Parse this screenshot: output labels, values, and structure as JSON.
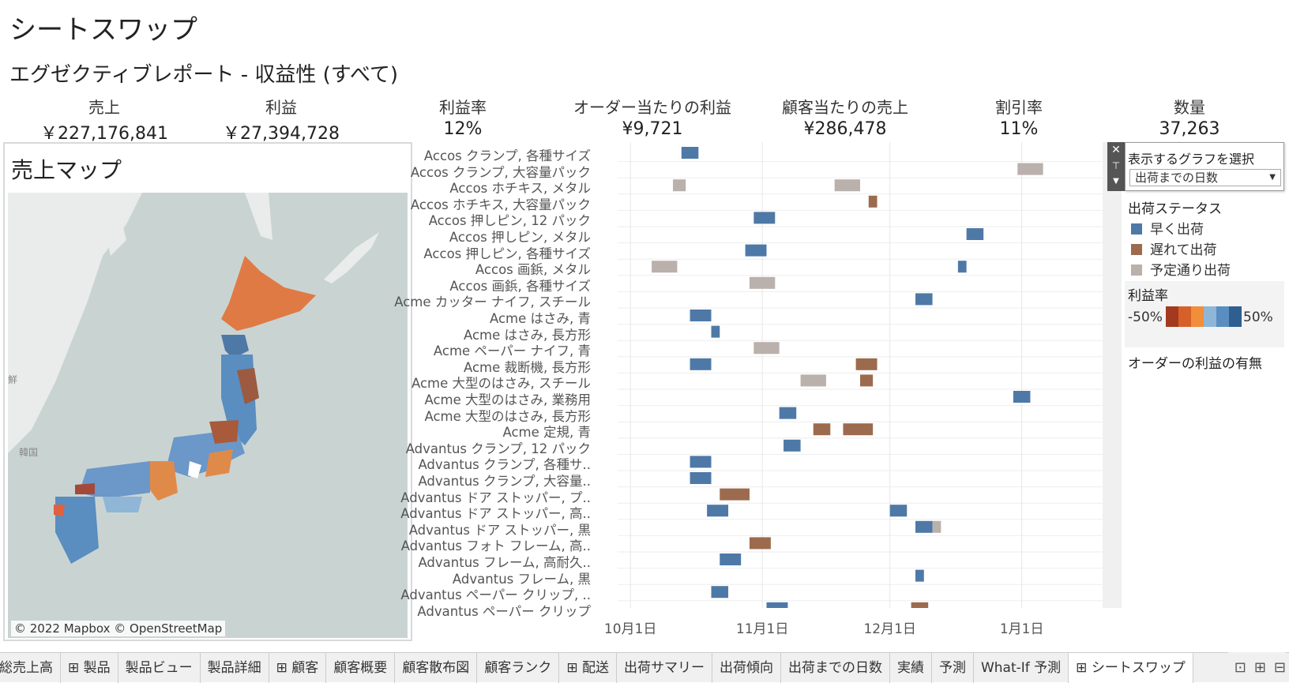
{
  "page": {
    "title": "シートスワップ",
    "subtitle": "エグゼクティブレポート - 収益性 (すべて)"
  },
  "kpis": [
    {
      "label": "売上",
      "value": "￥227,176,841"
    },
    {
      "label": "利益",
      "value": "￥27,394,728"
    },
    {
      "label": "利益率",
      "value": "12%"
    },
    {
      "label": "オーダー当たりの利益",
      "value": "¥9,721"
    },
    {
      "label": "顧客当たりの売上",
      "value": "¥286,478"
    },
    {
      "label": "割引率",
      "value": "11%"
    },
    {
      "label": "数量",
      "value": "37,263"
    }
  ],
  "map": {
    "title": "売上マップ",
    "attribution": "© 2022 Mapbox © OpenStreetMap",
    "labels": [
      "韓国",
      "鮮"
    ]
  },
  "gantt": {
    "rows": [
      "Accos クランプ, 各種サイズ",
      "Accos クランプ, 大容量パック",
      "Accos ホチキス, メタル",
      "Accos ホチキス, 大容量パック",
      "Accos 押しピン, 12 パック",
      "Accos 押しピン, メタル",
      "Accos 押しピン, 各種サイズ",
      "Accos 画鋲, メタル",
      "Accos 画鋲, 各種サイズ",
      "Acme カッター ナイフ, スチール",
      "Acme はさみ, 青",
      "Acme はさみ, 長方形",
      "Acme ペーパー ナイフ, 青",
      "Acme 裁断機, 長方形",
      "Acme 大型のはさみ, スチール",
      "Acme 大型のはさみ, 業務用",
      "Acme 大型のはさみ, 長方形",
      "Acme 定規, 青",
      "Advantus クランプ, 12 パック",
      "Advantus クランプ, 各種サ..",
      "Advantus クランプ, 大容量..",
      "Advantus ドア ストッパー, プ..",
      "Advantus ドア ストッパー, 高..",
      "Advantus ドア ストッパー, 黒",
      "Advantus フォト フレーム, 高..",
      "Advantus フレーム, 高耐久..",
      "Advantus フレーム, 黒",
      "Advantus ペーパー クリップ, ..",
      "Advantus ペーパー クリップ"
    ],
    "x_ticks": [
      "10月1日",
      "11月1日",
      "12月1日",
      "1月1日"
    ]
  },
  "chart_data": {
    "type": "gantt",
    "x_domain": [
      "2021-09-28",
      "2022-01-20"
    ],
    "x_ticks": [
      "2021-10-01",
      "2021-11-01",
      "2021-12-01",
      "2022-01-01"
    ],
    "bars": [
      {
        "row": 0,
        "start": "2021-10-13",
        "end": "2021-10-17",
        "status": "early"
      },
      {
        "row": 1,
        "start": "2021-12-31",
        "end": "2022-01-06",
        "status": "ontime"
      },
      {
        "row": 2,
        "start": "2021-10-11",
        "end": "2021-10-14",
        "status": "ontime"
      },
      {
        "row": 2,
        "start": "2021-11-18",
        "end": "2021-11-24",
        "status": "ontime"
      },
      {
        "row": 3,
        "start": "2021-11-26",
        "end": "2021-11-28",
        "status": "late"
      },
      {
        "row": 4,
        "start": "2021-10-30",
        "end": "2021-11-04",
        "status": "early"
      },
      {
        "row": 5,
        "start": "2021-12-19",
        "end": "2021-12-23",
        "status": "early"
      },
      {
        "row": 6,
        "start": "2021-10-28",
        "end": "2021-11-02",
        "status": "early"
      },
      {
        "row": 7,
        "start": "2021-10-06",
        "end": "2021-10-12",
        "status": "ontime"
      },
      {
        "row": 7,
        "start": "2021-12-17",
        "end": "2021-12-19",
        "status": "early"
      },
      {
        "row": 8,
        "start": "2021-10-29",
        "end": "2021-11-04",
        "status": "ontime"
      },
      {
        "row": 9,
        "start": "2021-12-07",
        "end": "2021-12-11",
        "status": "early"
      },
      {
        "row": 10,
        "start": "2021-10-15",
        "end": "2021-10-20",
        "status": "early"
      },
      {
        "row": 11,
        "start": "2021-10-20",
        "end": "2021-10-22",
        "status": "early"
      },
      {
        "row": 12,
        "start": "2021-10-30",
        "end": "2021-11-05",
        "status": "ontime"
      },
      {
        "row": 13,
        "start": "2021-10-15",
        "end": "2021-10-20",
        "status": "early"
      },
      {
        "row": 13,
        "start": "2021-11-23",
        "end": "2021-11-28",
        "status": "late"
      },
      {
        "row": 14,
        "start": "2021-11-10",
        "end": "2021-11-16",
        "status": "ontime"
      },
      {
        "row": 14,
        "start": "2021-11-24",
        "end": "2021-11-27",
        "status": "late"
      },
      {
        "row": 15,
        "start": "2021-12-30",
        "end": "2022-01-03",
        "status": "early"
      },
      {
        "row": 16,
        "start": "2021-11-05",
        "end": "2021-11-09",
        "status": "early"
      },
      {
        "row": 17,
        "start": "2021-11-13",
        "end": "2021-11-17",
        "status": "late"
      },
      {
        "row": 17,
        "start": "2021-11-20",
        "end": "2021-11-27",
        "status": "late"
      },
      {
        "row": 18,
        "start": "2021-11-06",
        "end": "2021-11-10",
        "status": "early"
      },
      {
        "row": 19,
        "start": "2021-10-15",
        "end": "2021-10-20",
        "status": "early"
      },
      {
        "row": 20,
        "start": "2021-10-15",
        "end": "2021-10-20",
        "status": "early"
      },
      {
        "row": 21,
        "start": "2021-10-22",
        "end": "2021-10-29",
        "status": "late"
      },
      {
        "row": 22,
        "start": "2021-10-19",
        "end": "2021-10-24",
        "status": "early"
      },
      {
        "row": 22,
        "start": "2021-12-01",
        "end": "2021-12-05",
        "status": "early"
      },
      {
        "row": 23,
        "start": "2021-12-07",
        "end": "2021-12-11",
        "status": "early"
      },
      {
        "row": 23,
        "start": "2021-12-11",
        "end": "2021-12-13",
        "status": "ontime"
      },
      {
        "row": 24,
        "start": "2021-10-29",
        "end": "2021-11-03",
        "status": "late"
      },
      {
        "row": 25,
        "start": "2021-10-22",
        "end": "2021-10-27",
        "status": "early"
      },
      {
        "row": 26,
        "start": "2021-12-07",
        "end": "2021-12-09",
        "status": "early"
      },
      {
        "row": 27,
        "start": "2021-10-20",
        "end": "2021-10-24",
        "status": "early"
      },
      {
        "row": 28,
        "start": "2021-11-02",
        "end": "2021-11-07",
        "status": "early"
      },
      {
        "row": 28,
        "start": "2021-12-06",
        "end": "2021-12-10",
        "status": "late"
      }
    ]
  },
  "colors": {
    "early": "#4e79a7",
    "late": "#9c6b4e",
    "ontime": "#bab0ac"
  },
  "side": {
    "param_title": "表示するグラフを選択",
    "param_value": "出荷までの日数",
    "status_title": "出荷ステータス",
    "status_items": [
      {
        "label": "早く出荷",
        "key": "early"
      },
      {
        "label": "遅れて出荷",
        "key": "late"
      },
      {
        "label": "予定通り出荷",
        "key": "ontime"
      }
    ],
    "profit_title": "利益率",
    "profit_min": "-50%",
    "profit_max": "50%",
    "profit_colors": [
      "#a33a1f",
      "#d6602a",
      "#f08e3a",
      "#8fb6d6",
      "#5a8dc0",
      "#2f5f90"
    ],
    "order_profit_title": "オーダーの利益の有無"
  },
  "tabs": [
    "総売上高",
    "⊞ 製品",
    "製品ビュー",
    "製品詳細",
    "⊞ 顧客",
    "顧客概要",
    "顧客散布図",
    "顧客ランク",
    "⊞ 配送",
    "出荷サマリー",
    "出荷傾向",
    "出荷までの日数",
    "実績",
    "予測",
    "What-If 予測",
    "⊞ シートスワップ"
  ],
  "active_tab": 15,
  "tab_icons": [
    "new-dashboard-icon",
    "new-worksheet-icon",
    "new-story-icon"
  ]
}
